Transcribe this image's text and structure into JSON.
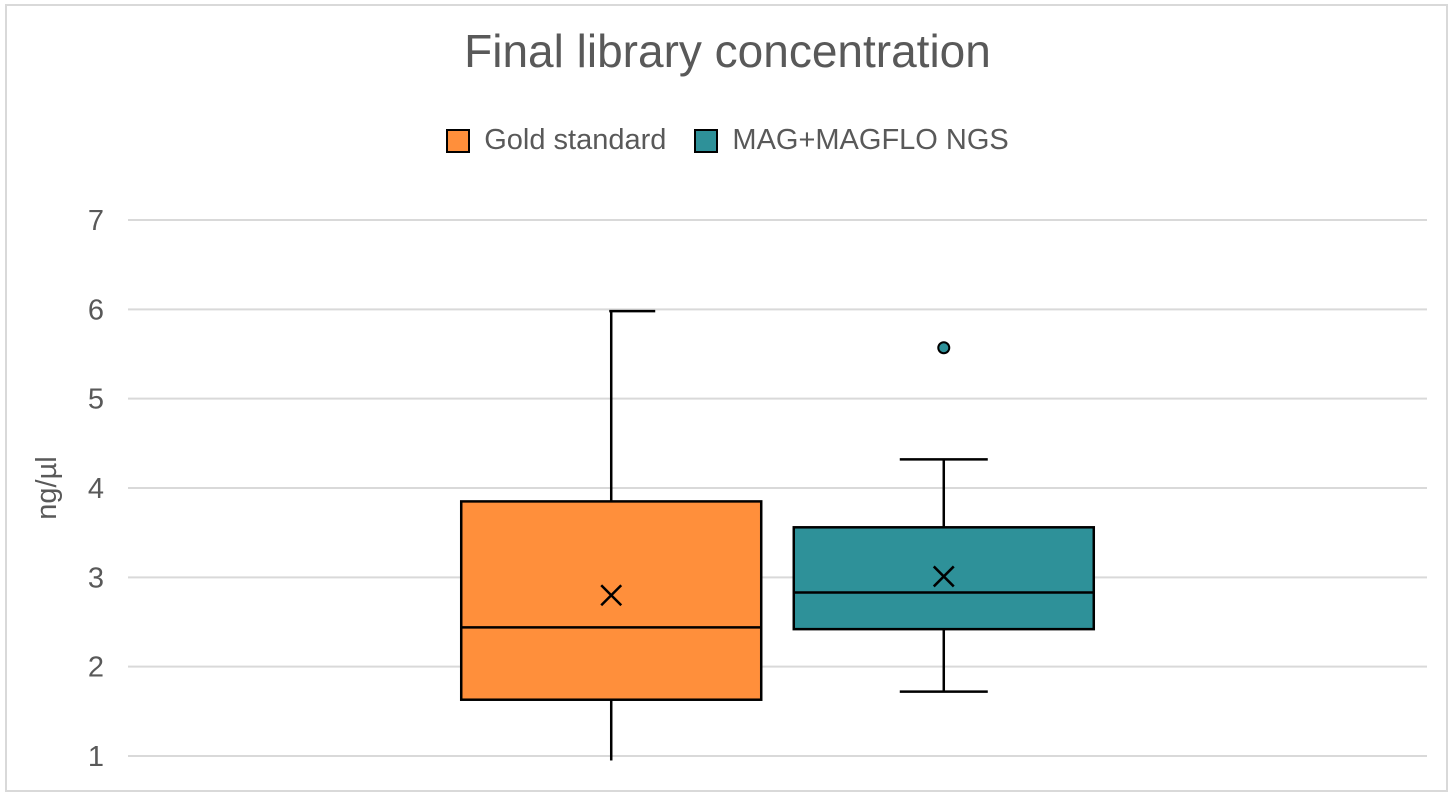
{
  "chart_data": {
    "type": "boxplot",
    "title": "Final library concentration",
    "ylabel": "ng/µl",
    "xlabel": "",
    "ylim": [
      1,
      7
    ],
    "yticks": [
      1,
      2,
      3,
      4,
      5,
      6,
      7
    ],
    "grid": true,
    "legend_position": "top",
    "series": [
      {
        "name": "Gold standard",
        "color": "#ff8f3b",
        "min": 0.95,
        "q1": 1.63,
        "median": 2.44,
        "q3": 3.85,
        "max": 5.98,
        "mean": 2.8,
        "outliers": []
      },
      {
        "name": "MAG+MAGFLO NGS",
        "color": "#2e9199",
        "min": 1.72,
        "q1": 2.42,
        "median": 2.83,
        "q3": 3.56,
        "max": 4.32,
        "mean": 3.01,
        "outliers": [
          5.57
        ]
      }
    ]
  }
}
